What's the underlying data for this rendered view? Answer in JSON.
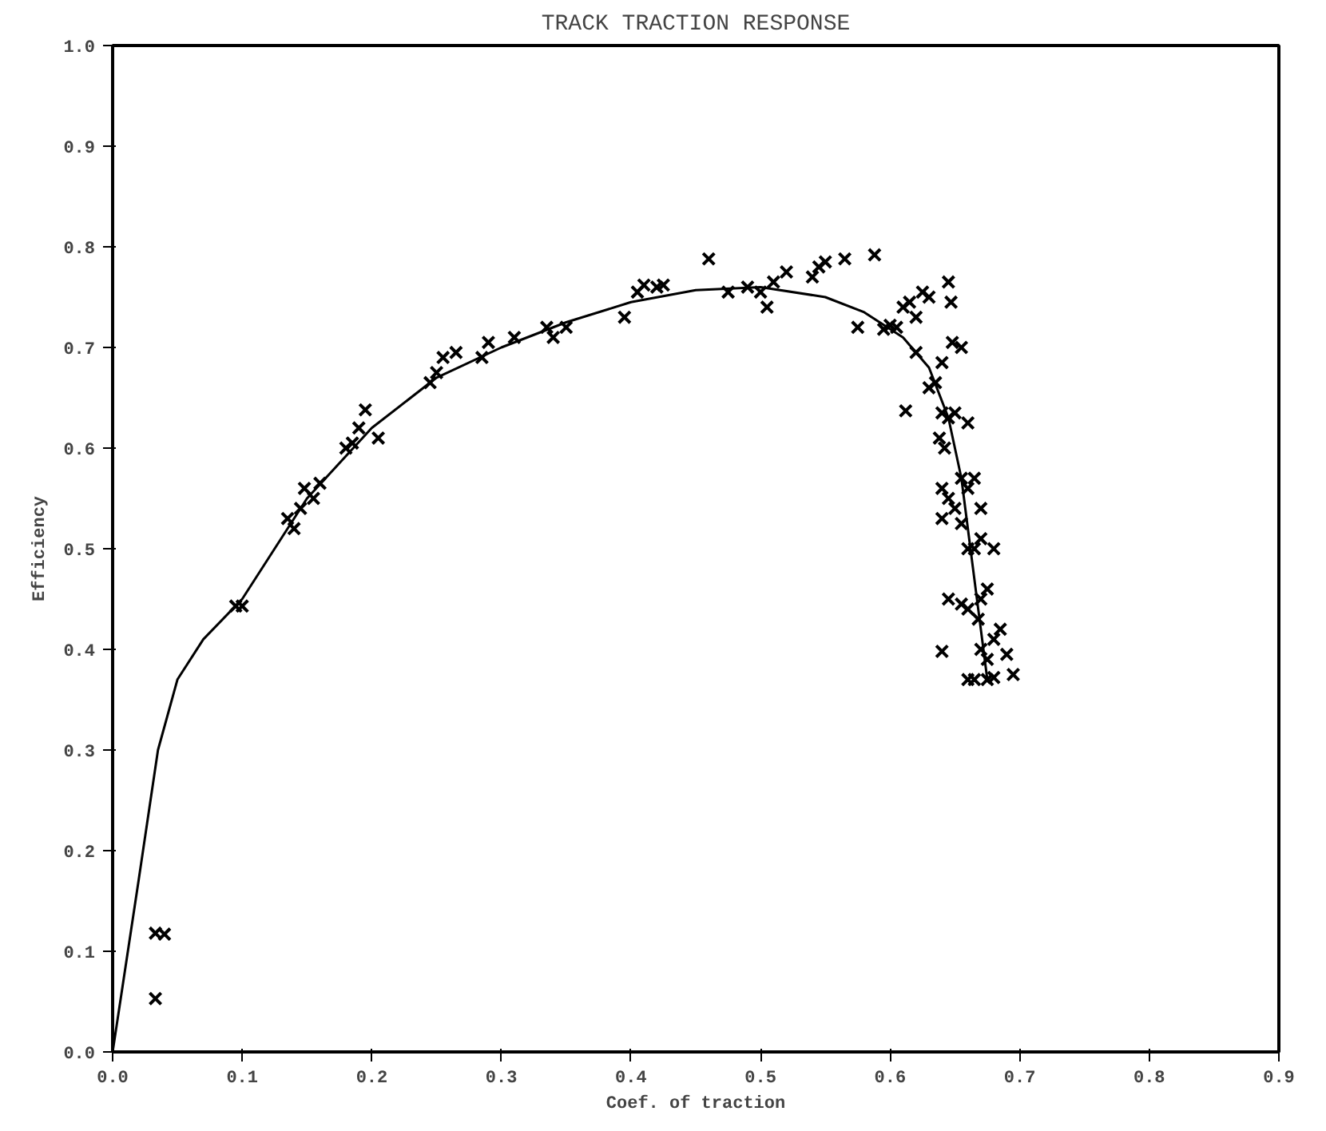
{
  "chart_data": {
    "type": "scatter",
    "title": "TRACK TRACTION RESPONSE",
    "xlabel": "Coef. of traction",
    "ylabel": "Efficiency",
    "xlim": [
      0.0,
      0.9
    ],
    "ylim": [
      0.0,
      1.0
    ],
    "xticks": [
      {
        "value": 0.0,
        "label": "0.0"
      },
      0.1,
      0.2,
      0.3,
      0.4,
      0.5,
      0.6,
      0.7,
      0.8,
      0.9
    ],
    "yticks": [
      {
        "value": 0.0,
        "label": "0.0"
      },
      0.1,
      0.2,
      0.3,
      0.4,
      0.5,
      0.6,
      0.7,
      0.8,
      0.9,
      {
        "value": 1.0,
        "label": "1.0"
      }
    ],
    "grid": false,
    "series": [
      {
        "marker": "cross",
        "color": "#000000",
        "x": [
          0.033,
          0.04,
          0.033,
          0.095,
          0.1,
          0.135,
          0.14,
          0.145,
          0.148,
          0.155,
          0.16,
          0.18,
          0.185,
          0.19,
          0.195,
          0.205,
          0.245,
          0.25,
          0.255,
          0.265,
          0.285,
          0.29,
          0.31,
          0.335,
          0.34,
          0.35,
          0.395,
          0.405,
          0.41,
          0.42,
          0.425,
          0.46,
          0.475,
          0.49,
          0.5,
          0.505,
          0.51,
          0.52,
          0.54,
          0.545,
          0.55,
          0.565,
          0.588,
          0.575,
          0.595,
          0.6,
          0.605,
          0.61,
          0.615,
          0.62,
          0.625,
          0.63,
          0.645,
          0.647,
          0.62,
          0.63,
          0.635,
          0.64,
          0.648,
          0.655,
          0.612,
          0.64,
          0.645,
          0.65,
          0.66,
          0.638,
          0.642,
          0.665,
          0.64,
          0.645,
          0.64,
          0.65,
          0.655,
          0.66,
          0.67,
          0.655,
          0.66,
          0.665,
          0.67,
          0.68,
          0.675,
          0.645,
          0.655,
          0.66,
          0.668,
          0.67,
          0.64,
          0.67,
          0.675,
          0.68,
          0.685,
          0.69,
          0.66,
          0.665,
          0.675,
          0.68,
          0.695
        ],
        "values": [
          0.118,
          0.117,
          0.053,
          0.443,
          0.443,
          0.53,
          0.52,
          0.54,
          0.56,
          0.55,
          0.565,
          0.6,
          0.605,
          0.62,
          0.638,
          0.61,
          0.665,
          0.675,
          0.69,
          0.695,
          0.69,
          0.705,
          0.71,
          0.72,
          0.71,
          0.72,
          0.73,
          0.755,
          0.762,
          0.76,
          0.762,
          0.788,
          0.755,
          0.76,
          0.755,
          0.74,
          0.765,
          0.775,
          0.77,
          0.78,
          0.785,
          0.788,
          0.792,
          0.72,
          0.718,
          0.722,
          0.72,
          0.74,
          0.745,
          0.73,
          0.755,
          0.75,
          0.765,
          0.745,
          0.695,
          0.66,
          0.665,
          0.685,
          0.705,
          0.7,
          0.637,
          0.635,
          0.63,
          0.635,
          0.625,
          0.61,
          0.6,
          0.57,
          0.56,
          0.55,
          0.53,
          0.54,
          0.57,
          0.56,
          0.54,
          0.525,
          0.5,
          0.5,
          0.51,
          0.5,
          0.46,
          0.45,
          0.445,
          0.44,
          0.43,
          0.45,
          0.398,
          0.4,
          0.39,
          0.41,
          0.42,
          0.395,
          0.37,
          0.37,
          0.37,
          0.372,
          0.375
        ]
      },
      {
        "type": "line",
        "marker": "none",
        "line_style": "solid",
        "color": "#000000",
        "x": [
          0.0,
          0.02,
          0.035,
          0.05,
          0.07,
          0.1,
          0.15,
          0.2,
          0.25,
          0.3,
          0.35,
          0.4,
          0.45,
          0.5,
          0.55,
          0.58,
          0.61,
          0.63,
          0.645,
          0.655,
          0.662,
          0.668,
          0.672,
          0.675
        ],
        "values": [
          0.0,
          0.17,
          0.3,
          0.37,
          0.41,
          0.45,
          0.55,
          0.62,
          0.67,
          0.7,
          0.725,
          0.745,
          0.757,
          0.76,
          0.75,
          0.735,
          0.71,
          0.68,
          0.63,
          0.57,
          0.5,
          0.44,
          0.4,
          0.37
        ]
      }
    ]
  }
}
